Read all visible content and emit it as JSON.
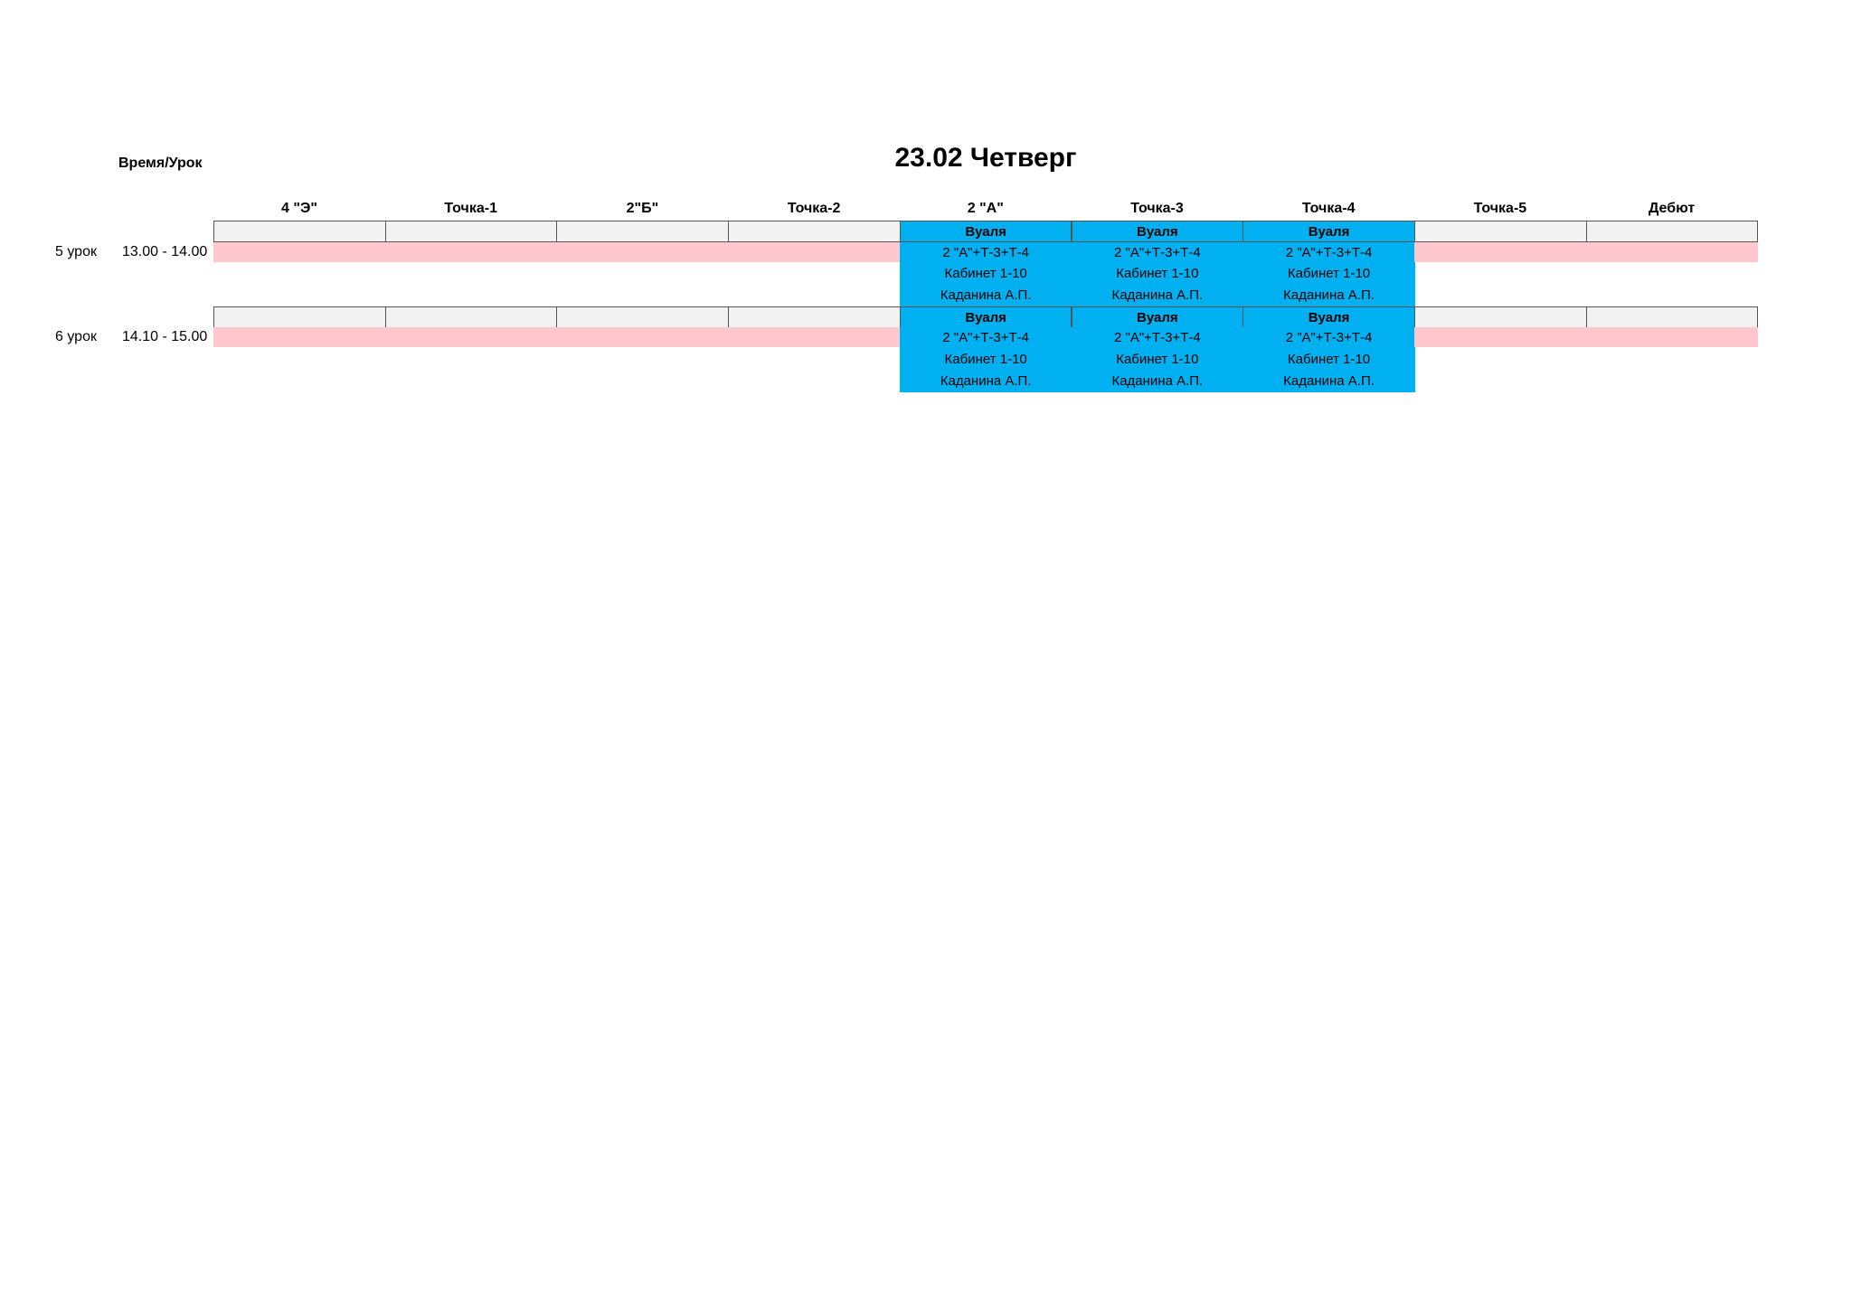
{
  "title": "23.02 Четверг",
  "corner_label": "Время/Урок",
  "columns": [
    "4 \"Э\"",
    "Точка-1",
    "2\"Б\"",
    "Точка-2",
    "2 \"А\"",
    "Точка-3",
    "Точка-4",
    "Точка-5",
    "Дебют"
  ],
  "colors": {
    "occupied": "#00b0f0",
    "free_row": "#ffc7ce",
    "header_cell": "#f2f2f2"
  },
  "lessons": [
    {
      "name": "5 урок",
      "time": "13.00 - 14.00",
      "cells": [
        null,
        null,
        null,
        null,
        {
          "activity": "Вуаля",
          "group": "2 \"А\"+Т-3+Т-4",
          "room": "Кабинет 1-10",
          "teacher": "Каданина А.П."
        },
        {
          "activity": "Вуаля",
          "group": "2 \"А\"+Т-3+Т-4",
          "room": "Кабинет 1-10",
          "teacher": "Каданина А.П."
        },
        {
          "activity": "Вуаля",
          "group": "2 \"А\"+Т-3+Т-4",
          "room": "Кабинет 1-10",
          "teacher": "Каданина А.П."
        },
        null,
        null
      ]
    },
    {
      "name": "6 урок",
      "time": "14.10 - 15.00",
      "cells": [
        null,
        null,
        null,
        null,
        {
          "activity": "Вуаля",
          "group": "2 \"А\"+Т-3+Т-4",
          "room": "Кабинет 1-10",
          "teacher": "Каданина А.П."
        },
        {
          "activity": "Вуаля",
          "group": "2 \"А\"+Т-3+Т-4",
          "room": "Кабинет 1-10",
          "teacher": "Каданина А.П."
        },
        {
          "activity": "Вуаля",
          "group": "2 \"А\"+Т-3+Т-4",
          "room": "Кабинет 1-10",
          "teacher": "Каданина А.П."
        },
        null,
        null
      ]
    }
  ]
}
